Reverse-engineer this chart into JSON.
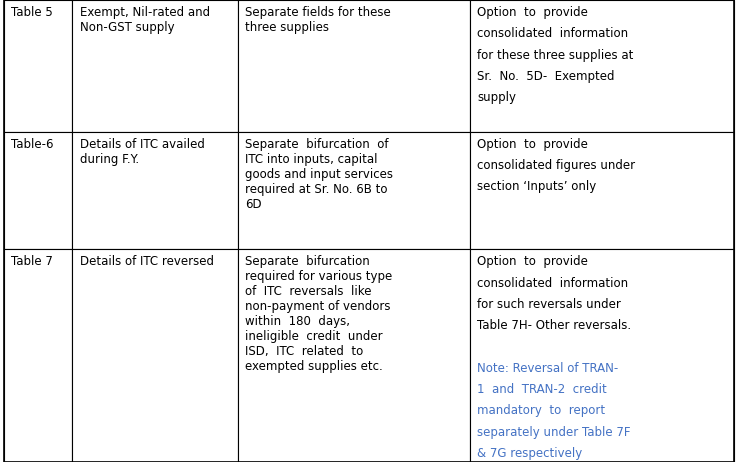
{
  "bg_color": "#ffffff",
  "border_color": "#000000",
  "text_color_black": "#000000",
  "text_color_blue": "#4472c4",
  "font_size": 8.5,
  "rows": [
    {
      "col0": "Table 5",
      "col1": "Exempt, Nil-rated and\nNon-GST supply",
      "col2": "Separate fields for these\nthree supplies",
      "col3_parts": [
        {
          "text": "Option  to  provide\nconsolidated  information\nfor these three supplies at\nSr.  No.  5D-  Exempted\nsupply",
          "color": "black"
        }
      ]
    },
    {
      "col0": "Table-6",
      "col1": "Details of ITC availed\nduring F.Y.",
      "col2": "Separate  bifurcation  of\nITC into inputs, capital\ngoods and input services\nrequired at Sr. No. 6B to\n6D",
      "col3_parts": [
        {
          "text": "Option  to  provide\nconsolidated figures under\nsection ‘Inputs’ only",
          "color": "black"
        }
      ]
    },
    {
      "col0": "Table 7",
      "col1": "Details of ITC reversed",
      "col2": "Separate  bifurcation\nrequired for various type\nof  ITC  reversals  like\nnon-payment of vendors\nwithin  180  days,\nineligible  credit  under\nISD,  ITC  related  to\nexempted supplies etc.",
      "col3_parts": [
        {
          "text": "Option  to  provide\nconsolidated  information\nfor such reversals under\nTable 7H- Other reversals.\n",
          "color": "black"
        },
        {
          "text": "Note: Reversal of TRAN-\n1  and  TRAN-2  credit\nmandatory  to  report\nseparately under Table 7F\n& 7G respectively",
          "color": "blue"
        }
      ]
    }
  ]
}
